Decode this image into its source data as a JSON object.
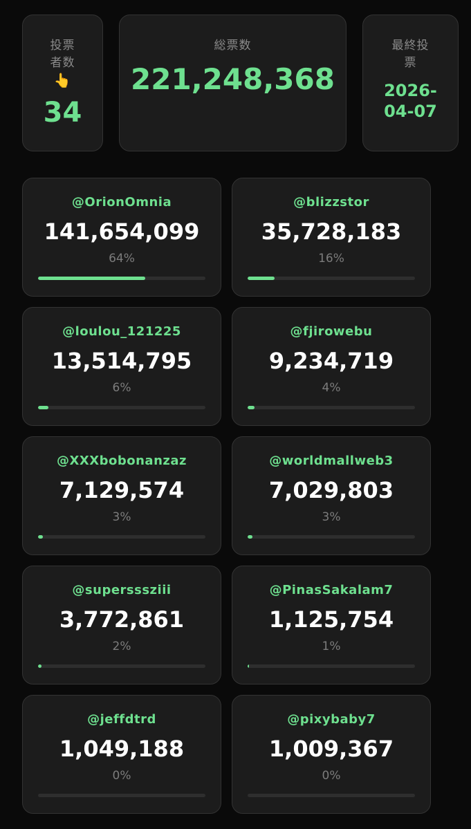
{
  "stats": {
    "voters": {
      "label_line1": "投票",
      "label_line2": "者数",
      "emoji": "👆",
      "value": "34"
    },
    "total": {
      "label": "総票数",
      "value": "221,248,368"
    },
    "last_vote": {
      "label_line1": "最終投",
      "label_line2": "票",
      "value_line1": "2026-",
      "value_line2": "04-07"
    }
  },
  "accent_color": "#6ee08f",
  "candidates": [
    {
      "user": "@OrionOmnia",
      "votes": "141,654,099",
      "percent": "64%",
      "share": 0.64
    },
    {
      "user": "@blizzstor",
      "votes": "35,728,183",
      "percent": "16%",
      "share": 0.16
    },
    {
      "user": "@loulou_121225",
      "votes": "13,514,795",
      "percent": "6%",
      "share": 0.06
    },
    {
      "user": "@fjirowebu",
      "votes": "9,234,719",
      "percent": "4%",
      "share": 0.04
    },
    {
      "user": "@XXXbobonanzaz",
      "votes": "7,129,574",
      "percent": "3%",
      "share": 0.03
    },
    {
      "user": "@worldmallweb3",
      "votes": "7,029,803",
      "percent": "3%",
      "share": 0.03
    },
    {
      "user": "@supersssziii",
      "votes": "3,772,861",
      "percent": "2%",
      "share": 0.02
    },
    {
      "user": "@PinasSakalam7",
      "votes": "1,125,754",
      "percent": "1%",
      "share": 0.01
    },
    {
      "user": "@jeffdtrd",
      "votes": "1,049,188",
      "percent": "0%",
      "share": 0
    },
    {
      "user": "@pixybaby7",
      "votes": "1,009,367",
      "percent": "0%",
      "share": 0
    }
  ]
}
